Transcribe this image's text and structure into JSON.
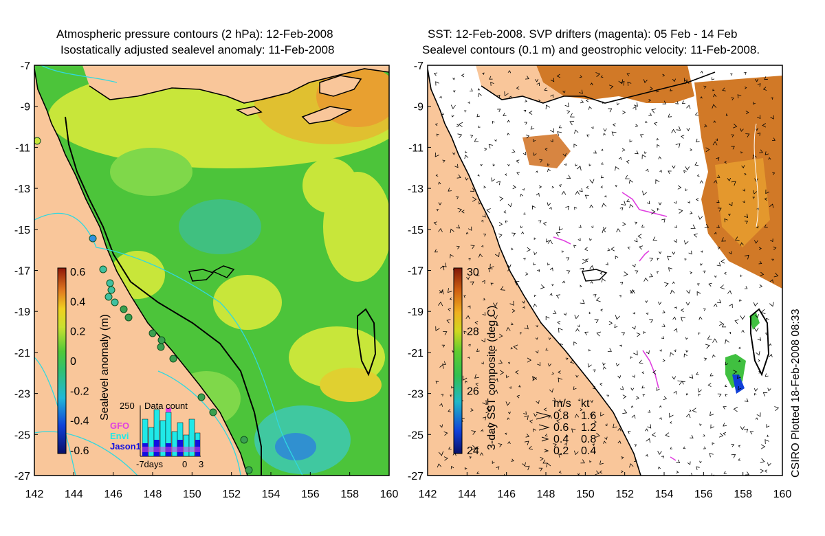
{
  "left_panel": {
    "title_line1": "Atmospheric pressure contours (2 hPa): 12-Feb-2008",
    "title_line2": "Isostatically adjusted sealevel anomaly: 11-Feb-2008",
    "colorbar_label": "Sealevel anomaly (m)",
    "colorbar_ticks": [
      "0.6",
      "0.4",
      "0.2",
      "0",
      "-0.2",
      "-0.4",
      "-0.6"
    ],
    "inset": {
      "title": "Data count",
      "ymax_label": "250",
      "x_labels": [
        "-7days",
        "0",
        "3"
      ],
      "legend": [
        {
          "name": "GFO",
          "color": "#e040e0"
        },
        {
          "name": "Envi",
          "color": "#20e8e8"
        },
        {
          "name": "Jason1",
          "color": "#1010e0"
        }
      ]
    }
  },
  "right_panel": {
    "title_line1": "SST: 12-Feb-2008. SVP drifters (magenta): 05 Feb - 14 Feb",
    "title_line2": "Sealevel contours (0.1 m) and geostrophic velocity: 11-Feb-2008.",
    "colorbar_label": "3-day SST composite (deg C)",
    "colorbar_ticks": [
      "30",
      "28",
      "26",
      "24"
    ],
    "velocity_legend": {
      "header_ms": "m/s",
      "header_kt": "kt",
      "rows": [
        {
          "ms": "0.8",
          "kt": "1.6"
        },
        {
          "ms": "0.6",
          "kt": "1.2"
        },
        {
          "ms": "0.4",
          "kt": "0.8"
        },
        {
          "ms": "0.2",
          "kt": "0.4"
        }
      ]
    },
    "credit": "CSIRO Plotted 18-Feb-2008 08:33"
  },
  "axes": {
    "y_ticks": [
      "-7",
      "-9",
      "-11",
      "-13",
      "-15",
      "-17",
      "-19",
      "-21",
      "-23",
      "-25",
      "-27"
    ],
    "x_ticks": [
      "142",
      "144",
      "146",
      "148",
      "150",
      "152",
      "154",
      "156",
      "158",
      "160"
    ]
  },
  "colors": {
    "land": "#f9c69a",
    "ocean_green": "#4cc43a",
    "ocean_light": "#7fd84a",
    "ocean_yellow": "#c8e63a",
    "ocean_orange": "#e8a030",
    "ocean_cyan": "#40c8a0",
    "sst_orange": "#cc6a10",
    "drifter": "#e040e0"
  }
}
